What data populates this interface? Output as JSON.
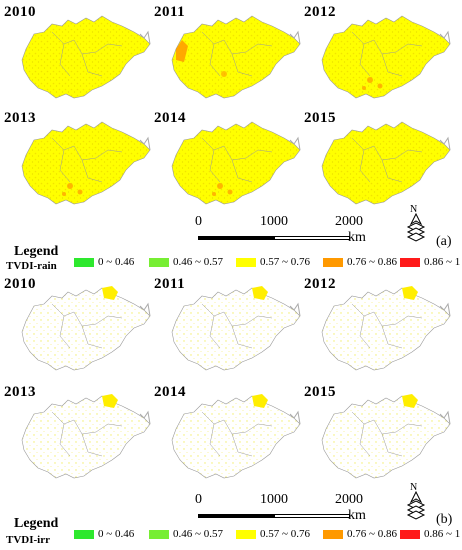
{
  "panel_a": {
    "years": [
      "2010",
      "2011",
      "2012",
      "2013",
      "2014",
      "2015"
    ],
    "scale": {
      "ticks": [
        "0",
        "1000",
        "2000"
      ],
      "unit": "km"
    },
    "label": "(a)",
    "legend": {
      "title": "Legend",
      "subtitle": "TVDI-rain"
    }
  },
  "panel_b": {
    "years": [
      "2010",
      "2011",
      "2012",
      "2013",
      "2014",
      "2015"
    ],
    "scale": {
      "ticks": [
        "0",
        "1000",
        "2000"
      ],
      "unit": "km"
    },
    "label": "(b)",
    "legend": {
      "title": "Legend",
      "subtitle": "TVDI-irr"
    }
  },
  "legend_classes": [
    {
      "label": "0 ~ 0.46",
      "color": "#2ee82e"
    },
    {
      "label": "0.46 ~ 0.57",
      "color": "#77ee33"
    },
    {
      "label": "0.57 ~ 0.76",
      "color": "#ffff00"
    },
    {
      "label": "0.76 ~ 0.86",
      "color": "#ff9900"
    },
    {
      "label": "0.86 ~ 1",
      "color": "#ff1a1a"
    }
  ],
  "north_arrow": {
    "letter": "N",
    "icon": "north-arrow-icon"
  }
}
